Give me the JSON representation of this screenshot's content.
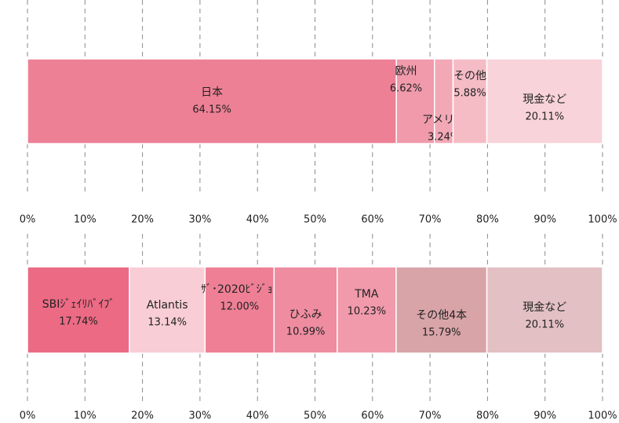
{
  "chart_data": [
    {
      "type": "stacked-bar-100",
      "categories": [
        "日本",
        "欧州",
        "アメリカ",
        "その他",
        "現金など"
      ],
      "values": [
        64.15,
        6.62,
        3.24,
        5.88,
        20.11
      ],
      "value_labels": [
        "64.15%",
        "6.62%",
        "3.24%",
        "5.88%",
        "20.11%"
      ],
      "colors": [
        "#ee8096",
        "#f09aab",
        "#f3a8b6",
        "#f6bcc6",
        "#f9d3da"
      ],
      "xlim": [
        0,
        100
      ],
      "xticks": [
        {
          "value": 0,
          "label": "0%"
        },
        {
          "value": 10,
          "label": "10%"
        },
        {
          "value": 20,
          "label": "20%"
        },
        {
          "value": 30,
          "label": "30%"
        },
        {
          "value": 40,
          "label": "40%"
        },
        {
          "value": 50,
          "label": "50%"
        },
        {
          "value": 60,
          "label": "60%"
        },
        {
          "value": 70,
          "label": "70%"
        },
        {
          "value": 80,
          "label": "80%"
        },
        {
          "value": 90,
          "label": "90%"
        },
        {
          "value": 100,
          "label": "100%"
        }
      ],
      "grid": true
    },
    {
      "type": "stacked-bar-100",
      "categories": [
        "SBIｼﾞｪｲﾘﾊﾞｲﾌﾞ",
        "Atlantis",
        "ｻﾞ･2020ﾋﾞｼﾞｮﾝ",
        "ひふみ",
        "TMA",
        "その他4本",
        "現金など"
      ],
      "values": [
        17.74,
        13.14,
        12.0,
        10.99,
        10.23,
        15.79,
        20.11
      ],
      "value_labels": [
        "17.74%",
        "13.14%",
        "12.00%",
        "10.99%",
        "10.23%",
        "15.79%",
        "20.11%"
      ],
      "colors": [
        "#ec6a84",
        "#f8cdd6",
        "#ee7f95",
        "#ef8ca0",
        "#f19aab",
        "#d8a4a8",
        "#e3c0c3"
      ],
      "xlim": [
        0,
        100
      ],
      "xticks": [
        {
          "value": 0,
          "label": "0%"
        },
        {
          "value": 10,
          "label": "10%"
        },
        {
          "value": 20,
          "label": "20%"
        },
        {
          "value": 30,
          "label": "30%"
        },
        {
          "value": 40,
          "label": "40%"
        },
        {
          "value": 50,
          "label": "50%"
        },
        {
          "value": 60,
          "label": "60%"
        },
        {
          "value": 70,
          "label": "70%"
        },
        {
          "value": 80,
          "label": "80%"
        },
        {
          "value": 90,
          "label": "90%"
        },
        {
          "value": 100,
          "label": "100%"
        }
      ],
      "grid": true
    }
  ]
}
